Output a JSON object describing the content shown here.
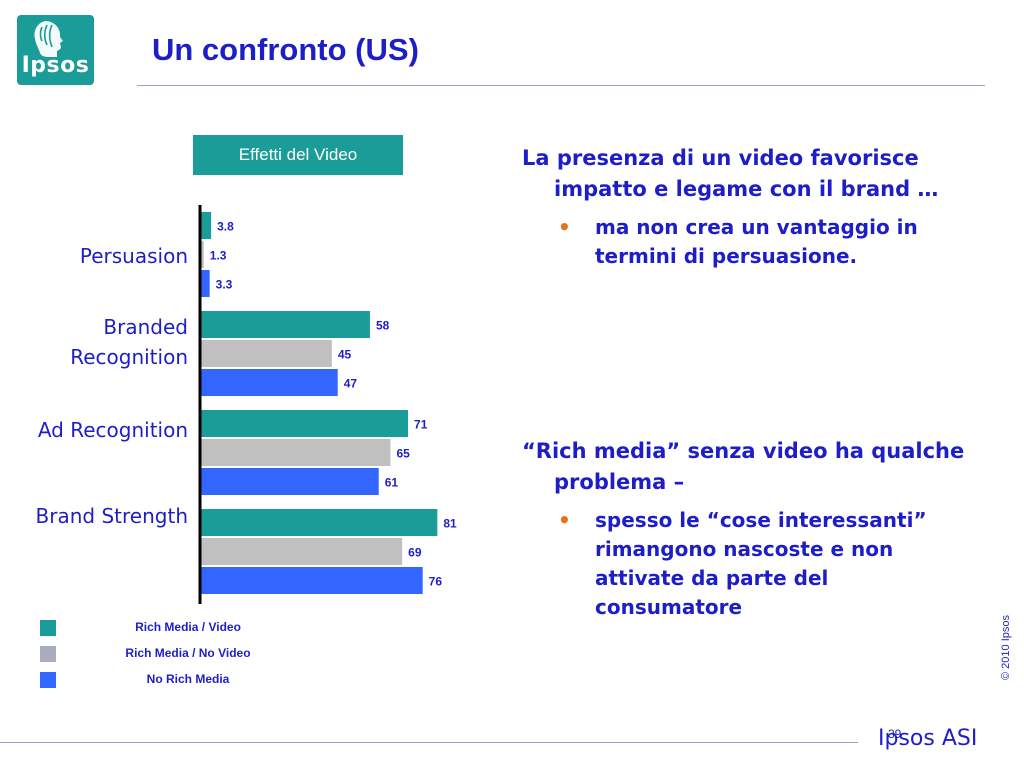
{
  "logo": {
    "text": "Ipsos"
  },
  "title": "Un confronto (US)",
  "chart_header": "Effetti del Video",
  "chart_data": {
    "type": "bar",
    "orientation": "horizontal",
    "categories": [
      "Persuasion",
      "Branded Recognition",
      "Ad Recognition",
      "Brand Strength"
    ],
    "series": [
      {
        "name": "Rich Media / Video",
        "values": [
          3.8,
          58,
          71,
          81
        ],
        "labels": [
          "3.8",
          "58",
          "71",
          "81"
        ],
        "color": "#1a9c98"
      },
      {
        "name": "Rich Media / No Video",
        "values": [
          1.3,
          45,
          65,
          69
        ],
        "labels": [
          "1.3",
          "45",
          "65",
          "69"
        ],
        "color": "#c0c0c0"
      },
      {
        "name": "No Rich Media",
        "values": [
          3.3,
          47,
          61,
          76
        ],
        "labels": [
          "3.3",
          "47",
          "61",
          "76"
        ],
        "color": "#3366ff"
      }
    ],
    "title": "Effetti del Video",
    "xlabel": "",
    "ylabel": "",
    "xlim": [
      0,
      100
    ],
    "grid": false,
    "legend_position": "bottom-left"
  },
  "legend": [
    {
      "label": "Rich Media / Video",
      "color": "#1a9c98"
    },
    {
      "label": "Rich Media / No Video",
      "color": "#a9abc0"
    },
    {
      "label": "No Rich Media",
      "color": "#3366ff"
    }
  ],
  "text_blocks": {
    "block1_para": "La presenza di un video favorisce impatto e legame con il brand …",
    "block1_bullet": "ma non crea un vantaggio in termini di persuasione.",
    "block2_para": "“Rich media” senza video ha qualche problema –",
    "block2_bullet": "spesso le “cose interessanti” rimangono nascoste e non attivate da parte del consumatore",
    "bullet_symbol": "•"
  },
  "copyright": "© 2010 Ipsos",
  "page_number": "39",
  "footer_brand": "Ipsos ASI",
  "colors": {
    "title": "#1e1ec8",
    "teal": "#1a9c98",
    "bullet": "#e8721a"
  }
}
